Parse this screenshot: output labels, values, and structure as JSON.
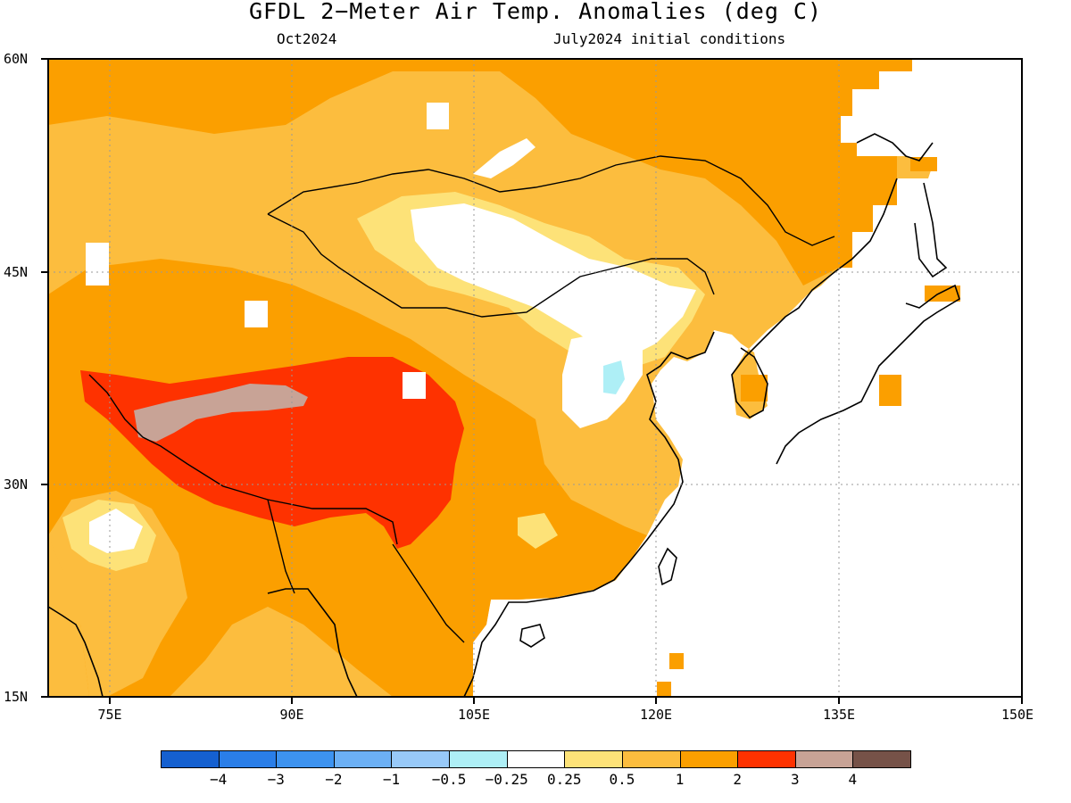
{
  "title": "GFDL 2−Meter Air Temp. Anomalies (deg C)",
  "subtitle_left": "Oct2024",
  "subtitle_right": "July2024 initial conditions",
  "lat_labels": [
    "60N",
    "45N",
    "30N",
    "15N"
  ],
  "lon_labels": [
    "75E",
    "90E",
    "105E",
    "120E",
    "135E",
    "150E"
  ],
  "map_region": {
    "lon_min": 70,
    "lon_max": 150,
    "lat_min": 15,
    "lat_max": 60
  },
  "colorbar": {
    "colors": [
      "#1560d0",
      "#2a7ee8",
      "#3d93f0",
      "#6cb0f5",
      "#98c9f8",
      "#aeeff6",
      "#ffffff",
      "#fde278",
      "#fcbd3e",
      "#fb9f00",
      "#fe3200",
      "#c8a396",
      "#765248"
    ],
    "labels": [
      "−4",
      "−3",
      "−2",
      "−1",
      "−0.5",
      "−0.25",
      "0.25",
      "0.5",
      "1",
      "2",
      "3",
      "4"
    ]
  },
  "legend_colors": {
    "ocean": "#ffffff",
    "plus_0_5_to_1": "#fcbd3e",
    "plus_1_to_2": "#fb9f00",
    "plus_2_to_3": "#fe3200",
    "plus_3_to_4": "#c8a396",
    "plus_0_25_to_0_5": "#fde278",
    "minus_0_5_to_minus_0_25": "#aeeff6"
  }
}
